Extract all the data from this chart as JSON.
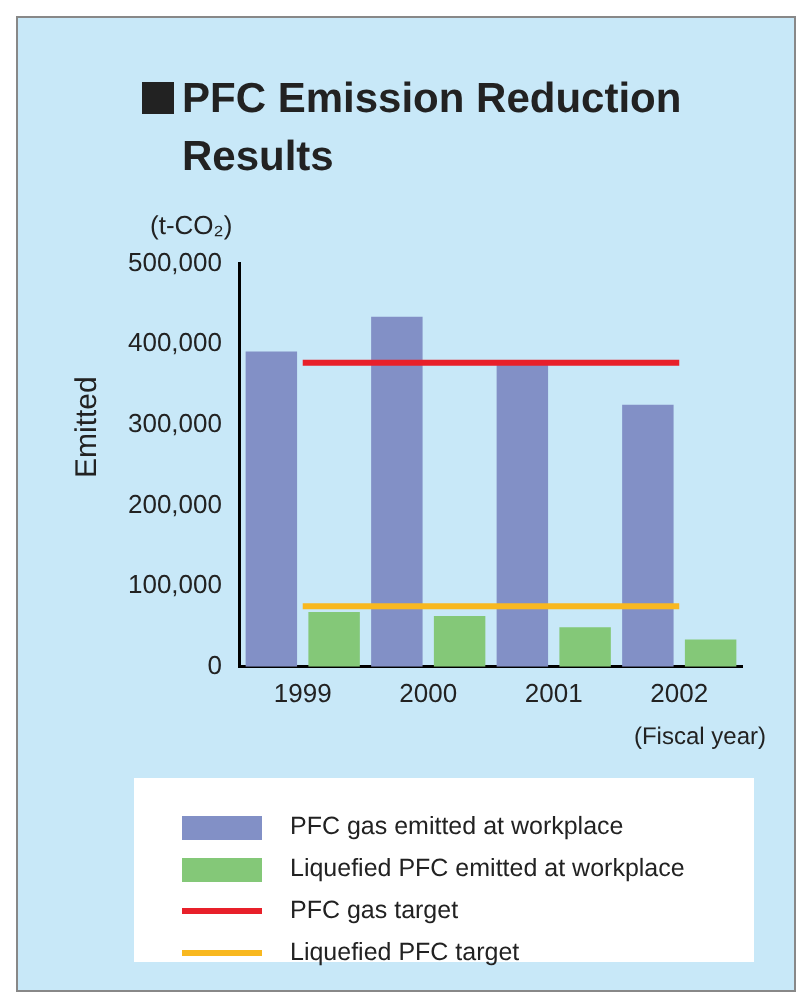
{
  "chart_data": {
    "type": "bar",
    "title": "PFC Emission Reduction Results",
    "xlabel": "(Fiscal year)",
    "ylabel": "Emitted",
    "annotations": [
      "(t-CO₂)"
    ],
    "categories": [
      "1999",
      "2000",
      "2001",
      "2002"
    ],
    "series": [
      {
        "name": "PFC gas emitted at workplace",
        "color": "#8290c6",
        "values": [
          391000,
          434000,
          378000,
          325000
        ]
      },
      {
        "name": "Liquefied PFC emitted at workplace",
        "color": "#84c878",
        "values": [
          68000,
          63000,
          49000,
          34000
        ]
      },
      {
        "name": "PFC gas target",
        "type": "line",
        "color": "#e8202a",
        "values": [
          377000,
          377000,
          377000,
          377000
        ]
      },
      {
        "name": "Liquefied PFC target",
        "type": "line",
        "color": "#f8b820",
        "values": [
          75000,
          75000,
          75000,
          75000
        ]
      }
    ],
    "ylim": [
      0,
      500000
    ],
    "yticks": [
      {
        "value": 0,
        "label": "0"
      },
      {
        "value": 100000,
        "label": "100,000"
      },
      {
        "value": 200000,
        "label": "200,000"
      },
      {
        "value": 300000,
        "label": "300,000"
      },
      {
        "value": 400000,
        "label": "400,000"
      },
      {
        "value": 500000,
        "label": "500,000"
      }
    ],
    "grid": false,
    "legend": "bottom"
  }
}
